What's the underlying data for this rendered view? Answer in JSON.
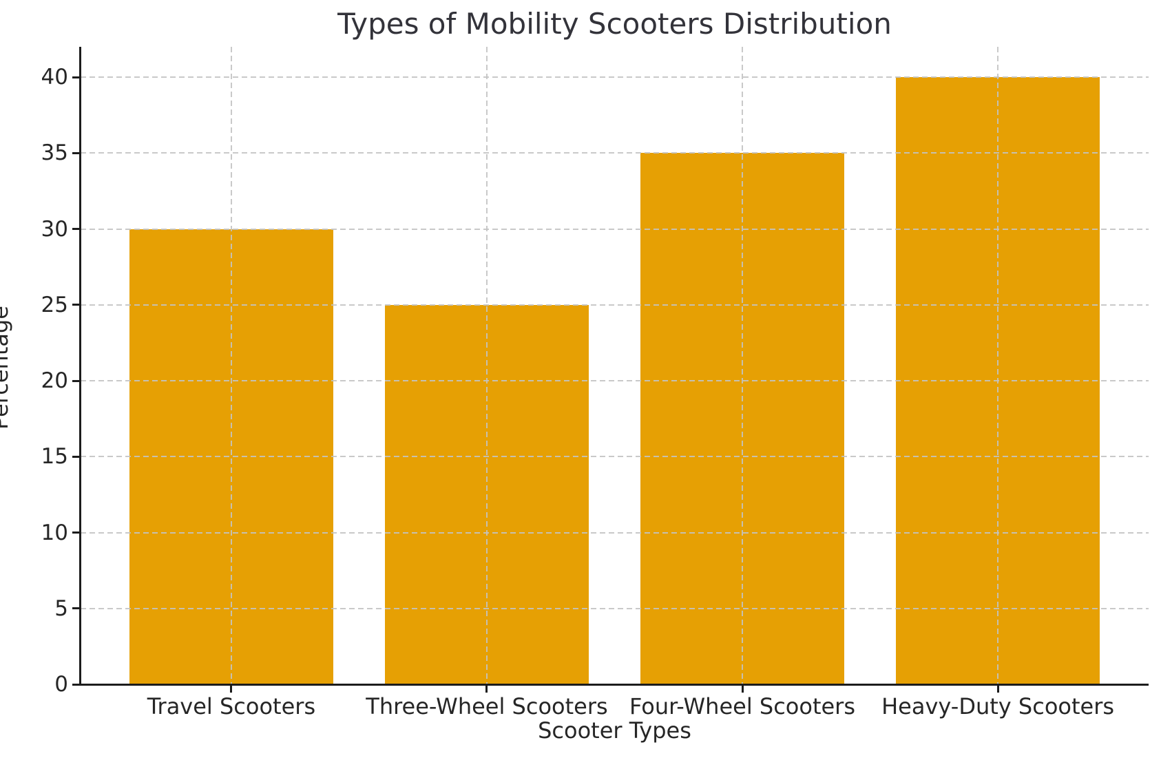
{
  "chart_data": {
    "type": "bar",
    "title": "Types of Mobility Scooters Distribution",
    "xlabel": "Scooter Types",
    "ylabel": "Percentage",
    "categories": [
      "Travel Scooters",
      "Three-Wheel Scooters",
      "Four-Wheel Scooters",
      "Heavy-Duty Scooters"
    ],
    "values": [
      30,
      25,
      35,
      40
    ],
    "yticks": [
      0,
      5,
      10,
      15,
      20,
      25,
      30,
      35,
      40
    ],
    "ylim": [
      0,
      42
    ],
    "bar_width_fraction": 0.8,
    "grid": "dashed gray, horizontal at yticks and vertical at bar centers, drawn above bars",
    "legend_position": "none",
    "colors": {
      "bar": "#E6A004",
      "grid": "#C3C3C3",
      "axis": "#1C1C1C",
      "tick_text": "#262626",
      "title_text": "#33333A",
      "background": "#FFFFFF"
    }
  }
}
